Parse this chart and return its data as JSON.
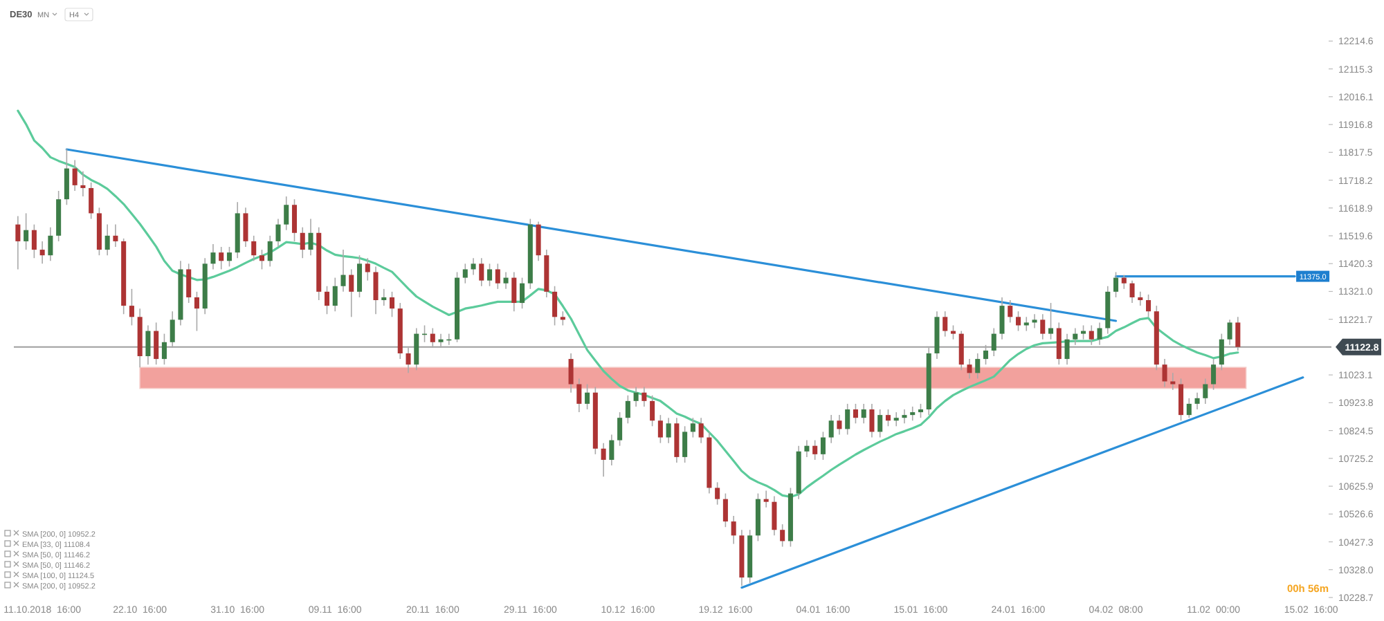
{
  "chart_data": {
    "type": "candlestick",
    "title": "DE30",
    "categories": [
      null,
      null,
      null,
      "11.10.2018  16:00",
      null,
      null,
      null,
      null,
      null,
      null,
      null,
      null,
      null,
      null,
      null,
      "22.10  16:00",
      null,
      null,
      null,
      null,
      null,
      null,
      null,
      null,
      null,
      null,
      null,
      "31.10  16:00",
      null,
      null,
      null,
      null,
      null,
      null,
      null,
      null,
      null,
      null,
      null,
      "09.11  16:00",
      null,
      null,
      null,
      null,
      null,
      null,
      null,
      null,
      null,
      null,
      null,
      "20.11  16:00",
      null,
      null,
      null,
      null,
      null,
      null,
      null,
      null,
      null,
      null,
      null,
      "29.11  16:00",
      null,
      null,
      null,
      null,
      null,
      null,
      null,
      null,
      null,
      null,
      null,
      "10.12  16:00",
      null,
      null,
      null,
      null,
      null,
      null,
      null,
      null,
      null,
      null,
      null,
      "19.12  16:00",
      null,
      null,
      null,
      null,
      null,
      null,
      null,
      null,
      null,
      null,
      null,
      "04.01  16:00",
      null,
      null,
      null,
      null,
      null,
      null,
      null,
      null,
      null,
      null,
      null,
      "15.01  16:00",
      null,
      null,
      null,
      null,
      null,
      null,
      null,
      null,
      null,
      null,
      null,
      "24.01  16:00",
      null,
      null,
      null,
      null,
      null,
      null,
      null,
      null,
      null,
      null,
      null,
      "04.02  08:00",
      null,
      null,
      null,
      null,
      null,
      null,
      null,
      null,
      null,
      null,
      null,
      "11.02  00:00",
      null,
      null,
      null,
      null,
      null,
      null,
      null,
      null,
      null,
      null,
      null,
      "15.02  16:00",
      null,
      null
    ],
    "ylim": [
      10228.7,
      12214.6
    ],
    "yticks": [
      12214.6,
      12115.3,
      12016.1,
      11916.8,
      11817.5,
      11718.2,
      11618.9,
      11519.6,
      11420.3,
      {
        "value": 11321,
        "label": "11321.0"
      },
      11221.7,
      11023.1,
      10923.8,
      10824.5,
      10725.2,
      10625.9,
      10526.6,
      10427.3,
      {
        "value": 10328,
        "label": "10328.0"
      },
      10228.7
    ],
    "bands": [
      {
        "axis": "y",
        "from": 10975,
        "to": 11050,
        "color": "#f2a19d"
      }
    ],
    "ref_lines": [
      {
        "axis": "y",
        "value": 11122.8,
        "label": "11122.8",
        "color": "#9e9e9e"
      }
    ],
    "annotations": [
      "SMA [200, 0] 10952.2",
      "EMA [33, 0] 11108.4",
      "SMA [50, 0] 11146.2",
      "SMA [50, 0] 11146.2",
      "SMA [100, 0] 11124.5",
      "SMA [200, 0] 10952.2",
      "00h 56m",
      "MN",
      "H4",
      "11375.0"
    ],
    "series": [
      {
        "type": "line",
        "color": "#5ccb9b",
        "values": [
          11966,
          11918,
          11860,
          11833,
          11800,
          11787,
          11776,
          11765,
          11738,
          11719,
          11705,
          11687,
          11661,
          11633,
          11598,
          11562,
          11522,
          11481,
          11430,
          11395,
          11382,
          11372,
          11362,
          11364,
          11373,
          11384,
          11395,
          11408,
          11423,
          11437,
          11448,
          11460,
          11478,
          11497,
          11494,
          11490,
          11495,
          11486,
          11467,
          11452,
          11447,
          11444,
          11440,
          11431,
          11420,
          11405,
          11391,
          11361,
          11331,
          11303,
          11285,
          11267,
          11252,
          11237,
          11248,
          11260,
          11265,
          11271,
          11278,
          11284,
          11284,
          11284,
          11285,
          11307,
          11330,
          11325,
          11311,
          11269,
          11224,
          11168,
          11112,
          11074,
          11037,
          11009,
          10984,
          10968,
          10960,
          10952,
          10941,
          10930,
          10908,
          10885,
          10874,
          10860,
          10848,
          10818,
          10788,
          10752,
          10716,
          10680,
          10655,
          10640,
          10628,
          10612,
          10593,
          10588,
          10597,
          10622,
          10643,
          10663,
          10684,
          10703,
          10721,
          10739,
          10755,
          10770,
          10785,
          10798,
          10812,
          10822,
          10833,
          10845,
          10872,
          10905,
          10930,
          10951,
          10966,
          10980,
          10992,
          11004,
          11017,
          11046,
          11076,
          11098,
          11116,
          11129,
          11136,
          11138,
          11140,
          11143,
          11144,
          11144,
          11144,
          11152,
          11159,
          11180,
          11193,
          11208,
          11222,
          11226,
          11190,
          11168,
          11146,
          11130,
          11116,
          11103,
          11094,
          11083,
          11089,
          11099,
          11103,
          null,
          null,
          null,
          null,
          null,
          null,
          null,
          null,
          null,
          null,
          null
        ]
      },
      {
        "type": "line",
        "color": "#2b8fd8",
        "values": [
          null,
          null,
          null,
          null,
          null,
          null,
          11828,
          null,
          null,
          null,
          null,
          null,
          null,
          null,
          null,
          null,
          null,
          null,
          null,
          null,
          null,
          null,
          null,
          null,
          null,
          null,
          null,
          null,
          null,
          null,
          null,
          null,
          null,
          null,
          null,
          null,
          null,
          null,
          null,
          null,
          null,
          null,
          null,
          null,
          null,
          null,
          null,
          null,
          null,
          null,
          null,
          null,
          null,
          null,
          null,
          null,
          null,
          null,
          null,
          null,
          null,
          null,
          null,
          null,
          null,
          null,
          null,
          null,
          null,
          null,
          null,
          null,
          null,
          null,
          null,
          null,
          null,
          null,
          null,
          null,
          null,
          null,
          null,
          null,
          null,
          null,
          null,
          null,
          null,
          null,
          null,
          null,
          null,
          null,
          null,
          null,
          null,
          null,
          null,
          null,
          null,
          null,
          null,
          null,
          null,
          null,
          null,
          null,
          null,
          null,
          null,
          null,
          null,
          null,
          null,
          null,
          null,
          null,
          null,
          null,
          null,
          null,
          null,
          null,
          null,
          null,
          null,
          null,
          null,
          null,
          null,
          null,
          null,
          null,
          null,
          11216,
          null,
          null,
          null,
          null,
          null,
          null,
          null,
          null,
          null,
          null,
          null,
          null,
          null,
          null,
          null,
          null,
          null,
          null,
          null,
          null,
          null,
          null,
          null,
          null,
          null,
          null
        ]
      },
      {
        "type": "line",
        "color": "#2b8fd8",
        "values": [
          null,
          null,
          null,
          null,
          null,
          null,
          null,
          null,
          null,
          null,
          null,
          null,
          null,
          null,
          null,
          null,
          null,
          null,
          null,
          null,
          null,
          null,
          null,
          null,
          null,
          null,
          null,
          null,
          null,
          null,
          null,
          null,
          null,
          null,
          null,
          null,
          null,
          null,
          null,
          null,
          null,
          null,
          null,
          null,
          null,
          null,
          null,
          null,
          null,
          null,
          null,
          null,
          null,
          null,
          null,
          null,
          null,
          null,
          null,
          null,
          null,
          null,
          null,
          null,
          null,
          null,
          null,
          null,
          null,
          null,
          null,
          null,
          null,
          null,
          null,
          null,
          null,
          null,
          null,
          null,
          null,
          null,
          null,
          null,
          null,
          null,
          null,
          null,
          null,
          10264,
          null,
          null,
          null,
          null,
          null,
          null,
          null,
          null,
          null,
          null,
          null,
          null,
          null,
          null,
          null,
          null,
          null,
          null,
          null,
          null,
          null,
          null,
          null,
          null,
          null,
          null,
          null,
          null,
          null,
          null,
          null,
          null,
          null,
          null,
          null,
          null,
          null,
          null,
          null,
          null,
          null,
          null,
          null,
          null,
          null,
          null,
          null,
          null,
          null,
          null,
          null,
          null,
          null,
          null,
          null,
          null,
          null,
          null,
          null,
          null,
          null,
          null,
          null,
          null,
          null,
          null,
          null,
          null,
          11014,
          null,
          null,
          null
        ]
      },
      {
        "type": "line",
        "color": "#2b8fd8",
        "values": [
          null,
          null,
          null,
          null,
          null,
          null,
          null,
          null,
          null,
          null,
          null,
          null,
          null,
          null,
          null,
          null,
          null,
          null,
          null,
          null,
          null,
          null,
          null,
          null,
          null,
          null,
          null,
          null,
          null,
          null,
          null,
          null,
          null,
          null,
          null,
          null,
          null,
          null,
          null,
          null,
          null,
          null,
          null,
          null,
          null,
          null,
          null,
          null,
          null,
          null,
          null,
          null,
          null,
          null,
          null,
          null,
          null,
          null,
          null,
          null,
          null,
          null,
          null,
          null,
          null,
          null,
          null,
          null,
          null,
          null,
          null,
          null,
          null,
          null,
          null,
          null,
          null,
          null,
          null,
          null,
          null,
          null,
          null,
          null,
          null,
          null,
          null,
          null,
          null,
          null,
          null,
          null,
          null,
          null,
          null,
          null,
          null,
          null,
          null,
          null,
          null,
          null,
          null,
          null,
          null,
          null,
          null,
          null,
          null,
          null,
          null,
          null,
          null,
          null,
          null,
          null,
          null,
          null,
          null,
          null,
          null,
          null,
          null,
          null,
          null,
          null,
          null,
          null,
          null,
          null,
          null,
          null,
          null,
          null,
          null,
          11375,
          null,
          null,
          null,
          null,
          null,
          null,
          null,
          null,
          null,
          null,
          null,
          null,
          null,
          null,
          null,
          null,
          null,
          null,
          null,
          null,
          null,
          11375,
          null,
          null,
          null,
          null
        ]
      },
      {
        "colors": [
          "#ad3434",
          "#3d7d48",
          "#ad3434",
          "#ad3434",
          "#3d7d48",
          "#3d7d48",
          "#3d7d48",
          "#ad3434",
          "#ad3434",
          "#ad3434",
          "#ad3434",
          "#3d7d48",
          "#ad3434",
          "#ad3434",
          "#ad3434",
          "#ad3434",
          "#3d7d48",
          "#ad3434",
          "#3d7d48",
          "#3d7d48",
          "#3d7d48",
          "#ad3434",
          "#ad3434",
          "#3d7d48",
          "#3d7d48",
          "#ad3434",
          "#3d7d48",
          "#3d7d48",
          "#ad3434",
          "#ad3434",
          "#ad3434",
          "#3d7d48",
          "#3d7d48",
          "#3d7d48",
          "#ad3434",
          "#ad3434",
          "#3d7d48",
          "#ad3434",
          "#ad3434",
          "#3d7d48",
          "#3d7d48",
          "#ad3434",
          "#3d7d48",
          "#ad3434",
          "#ad3434",
          "#3d7d48",
          "#ad3434",
          "#ad3434",
          "#ad3434",
          "#3d7d48",
          "#3d7d48",
          "#ad3434",
          "#3d7d48",
          "#3d7d48",
          "#3d7d48",
          "#3d7d48",
          "#3d7d48",
          "#ad3434",
          "#3d7d48",
          "#ad3434",
          "#3d7d48",
          "#ad3434",
          "#3d7d48",
          "#3d7d48",
          "#ad3434",
          "#ad3434",
          "#ad3434",
          "#ad3434",
          "#ad3434",
          "#ad3434",
          "#3d7d48",
          "#ad3434",
          "#ad3434",
          "#3d7d48",
          "#3d7d48",
          "#3d7d48",
          "#3d7d48",
          "#ad3434",
          "#ad3434",
          "#ad3434",
          "#3d7d48",
          "#ad3434",
          "#3d7d48",
          "#3d7d48",
          "#ad3434",
          "#ad3434",
          "#ad3434",
          "#ad3434",
          "#ad3434",
          "#ad3434",
          "#3d7d48",
          "#3d7d48",
          "#ad3434",
          "#ad3434",
          "#ad3434",
          "#3d7d48",
          "#3d7d48",
          "#3d7d48",
          "#ad3434",
          "#3d7d48",
          "#3d7d48",
          "#ad3434",
          "#3d7d48",
          "#ad3434",
          "#3d7d48",
          "#ad3434",
          "#3d7d48",
          "#ad3434",
          "#3d7d48",
          "#3d7d48",
          "#3d7d48",
          "#3d7d48",
          "#3d7d48",
          "#3d7d48",
          "#ad3434",
          "#ad3434",
          "#ad3434",
          "#ad3434",
          "#3d7d48",
          "#3d7d48",
          "#3d7d48",
          "#3d7d48",
          "#ad3434",
          "#ad3434",
          "#3d7d48",
          "#3d7d48",
          "#ad3434",
          "#3d7d48",
          "#ad3434",
          "#3d7d48",
          "#3d7d48",
          "#3d7d48",
          "#ad3434",
          "#3d7d48",
          "#3d7d48",
          "#3d7d48",
          "#ad3434",
          "#ad3434",
          "#ad3434",
          "#ad3434",
          "#ad3434",
          "#ad3434",
          "#ad3434",
          "#ad3434",
          "#3d7d48",
          "#3d7d48",
          "#3d7d48",
          "#3d7d48",
          "#3d7d48",
          "#3d7d48",
          "#ad3434",
          null,
          null,
          null,
          null,
          null,
          null,
          null,
          null,
          null,
          null,
          null
        ],
        "ohlc": [
          [
            11560,
            11590,
            11400,
            11500
          ],
          [
            11500,
            11600,
            11470,
            11540
          ],
          [
            11540,
            11560,
            11440,
            11470
          ],
          [
            11470,
            11500,
            11420,
            11450
          ],
          [
            11450,
            11550,
            11430,
            11520
          ],
          [
            11520,
            11680,
            11500,
            11650
          ],
          [
            11650,
            11830,
            11630,
            11760
          ],
          [
            11760,
            11790,
            11680,
            11700
          ],
          [
            11700,
            11750,
            11660,
            11690
          ],
          [
            11690,
            11710,
            11580,
            11600
          ],
          [
            11600,
            11620,
            11450,
            11470
          ],
          [
            11470,
            11560,
            11450,
            11520
          ],
          [
            11520,
            11560,
            11480,
            11500
          ],
          [
            11500,
            11510,
            11240,
            11270
          ],
          [
            11270,
            11330,
            11200,
            11230
          ],
          [
            11230,
            11260,
            11050,
            11090
          ],
          [
            11090,
            11200,
            11060,
            11180
          ],
          [
            11180,
            11210,
            11060,
            11080
          ],
          [
            11080,
            11170,
            11060,
            11140
          ],
          [
            11140,
            11250,
            11120,
            11220
          ],
          [
            11220,
            11430,
            11200,
            11400
          ],
          [
            11400,
            11420,
            11280,
            11300
          ],
          [
            11300,
            11320,
            11180,
            11260
          ],
          [
            11260,
            11440,
            11240,
            11420
          ],
          [
            11420,
            11490,
            11400,
            11460
          ],
          [
            11460,
            11480,
            11400,
            11430
          ],
          [
            11430,
            11480,
            11410,
            11460
          ],
          [
            11460,
            11640,
            11440,
            11600
          ],
          [
            11600,
            11620,
            11480,
            11500
          ],
          [
            11500,
            11520,
            11430,
            11450
          ],
          [
            11450,
            11470,
            11400,
            11430
          ],
          [
            11430,
            11520,
            11410,
            11500
          ],
          [
            11500,
            11580,
            11480,
            11560
          ],
          [
            11560,
            11660,
            11540,
            11630
          ],
          [
            11630,
            11650,
            11500,
            11530
          ],
          [
            11530,
            11550,
            11440,
            11470
          ],
          [
            11470,
            11580,
            11450,
            11530
          ],
          [
            11530,
            11550,
            11290,
            11320
          ],
          [
            11320,
            11340,
            11240,
            11270
          ],
          [
            11270,
            11370,
            11250,
            11340
          ],
          [
            11340,
            11470,
            11320,
            11380
          ],
          [
            11380,
            11400,
            11230,
            11320
          ],
          [
            11320,
            11450,
            11300,
            11420
          ],
          [
            11420,
            11440,
            11360,
            11390
          ],
          [
            11390,
            11410,
            11240,
            11290
          ],
          [
            11290,
            11330,
            11270,
            11300
          ],
          [
            11300,
            11320,
            11230,
            11260
          ],
          [
            11260,
            11280,
            11080,
            11100
          ],
          [
            11100,
            11120,
            11030,
            11060
          ],
          [
            11060,
            11190,
            11040,
            11170
          ],
          [
            11170,
            11200,
            11140,
            11170
          ],
          [
            11170,
            11190,
            11120,
            11140
          ],
          [
            11140,
            11170,
            11120,
            11150
          ],
          [
            11150,
            11170,
            11130,
            11150
          ],
          [
            11150,
            11390,
            11140,
            11370
          ],
          [
            11370,
            11420,
            11350,
            11400
          ],
          [
            11400,
            11440,
            11380,
            11420
          ],
          [
            11420,
            11440,
            11340,
            11360
          ],
          [
            11360,
            11420,
            11340,
            11400
          ],
          [
            11400,
            11420,
            11330,
            11350
          ],
          [
            11350,
            11390,
            11330,
            11370
          ],
          [
            11370,
            11390,
            11250,
            11280
          ],
          [
            11280,
            11370,
            11260,
            11350
          ],
          [
            11350,
            11580,
            11330,
            11560
          ],
          [
            11560,
            11570,
            11430,
            11450
          ],
          [
            11450,
            11470,
            11300,
            11320
          ],
          [
            11320,
            11340,
            11200,
            11230
          ],
          [
            11230,
            11250,
            11200,
            11220
          ],
          [
            11080,
            11100,
            10960,
            10990
          ],
          [
            10990,
            11010,
            10890,
            10920
          ],
          [
            10920,
            10990,
            10900,
            10960
          ],
          [
            10960,
            10980,
            10740,
            10760
          ],
          [
            10760,
            10780,
            10660,
            10720
          ],
          [
            10720,
            10810,
            10700,
            10790
          ],
          [
            10790,
            10890,
            10770,
            10870
          ],
          [
            10870,
            10950,
            10850,
            10930
          ],
          [
            10930,
            10980,
            10910,
            10960
          ],
          [
            10960,
            10980,
            10910,
            10930
          ],
          [
            10930,
            10950,
            10840,
            10860
          ],
          [
            10860,
            10880,
            10780,
            10800
          ],
          [
            10800,
            10870,
            10780,
            10850
          ],
          [
            10850,
            10870,
            10710,
            10730
          ],
          [
            10730,
            10840,
            10710,
            10820
          ],
          [
            10820,
            10870,
            10800,
            10850
          ],
          [
            10850,
            10870,
            10780,
            10800
          ],
          [
            10800,
            10820,
            10600,
            10620
          ],
          [
            10620,
            10640,
            10560,
            10580
          ],
          [
            10580,
            10600,
            10480,
            10500
          ],
          [
            10500,
            10520,
            10420,
            10450
          ],
          [
            10450,
            10470,
            10270,
            10300
          ],
          [
            10300,
            10470,
            10280,
            10450
          ],
          [
            10450,
            10600,
            10430,
            10580
          ],
          [
            10580,
            10610,
            10550,
            10570
          ],
          [
            10570,
            10590,
            10450,
            10470
          ],
          [
            10470,
            10490,
            10410,
            10430
          ],
          [
            10430,
            10620,
            10410,
            10600
          ],
          [
            10600,
            10770,
            10580,
            10750
          ],
          [
            10750,
            10790,
            10730,
            10770
          ],
          [
            10770,
            10790,
            10720,
            10740
          ],
          [
            10740,
            10820,
            10720,
            10800
          ],
          [
            10800,
            10880,
            10780,
            10860
          ],
          [
            10860,
            10880,
            10810,
            10830
          ],
          [
            10830,
            10920,
            10810,
            10900
          ],
          [
            10900,
            10920,
            10850,
            10870
          ],
          [
            10870,
            10920,
            10850,
            10900
          ],
          [
            10900,
            10920,
            10800,
            10820
          ],
          [
            10820,
            10900,
            10800,
            10880
          ],
          [
            10880,
            10900,
            10840,
            10860
          ],
          [
            10860,
            10890,
            10840,
            10870
          ],
          [
            10870,
            10900,
            10850,
            10880
          ],
          [
            10880,
            10910,
            10860,
            10890
          ],
          [
            10890,
            10920,
            10870,
            10900
          ],
          [
            10900,
            11120,
            10880,
            11100
          ],
          [
            11100,
            11250,
            11080,
            11230
          ],
          [
            11230,
            11250,
            11160,
            11180
          ],
          [
            11180,
            11200,
            11150,
            11170
          ],
          [
            11170,
            11180,
            11040,
            11060
          ],
          [
            11060,
            11080,
            11010,
            11030
          ],
          [
            11030,
            11100,
            11010,
            11080
          ],
          [
            11080,
            11130,
            11060,
            11110
          ],
          [
            11110,
            11190,
            11090,
            11170
          ],
          [
            11170,
            11300,
            11150,
            11270
          ],
          [
            11270,
            11290,
            11210,
            11230
          ],
          [
            11230,
            11250,
            11180,
            11200
          ],
          [
            11200,
            11230,
            11180,
            11210
          ],
          [
            11210,
            11240,
            11190,
            11220
          ],
          [
            11220,
            11240,
            11150,
            11170
          ],
          [
            11170,
            11280,
            11150,
            11190
          ],
          [
            11190,
            11210,
            11060,
            11080
          ],
          [
            11080,
            11170,
            11060,
            11150
          ],
          [
            11150,
            11190,
            11130,
            11170
          ],
          [
            11170,
            11200,
            11150,
            11180
          ],
          [
            11180,
            11200,
            11130,
            11150
          ],
          [
            11150,
            11210,
            11130,
            11190
          ],
          [
            11190,
            11340,
            11170,
            11320
          ],
          [
            11320,
            11390,
            11300,
            11370
          ],
          [
            11370,
            11380,
            11330,
            11350
          ],
          [
            11350,
            11360,
            11280,
            11300
          ],
          [
            11300,
            11320,
            11270,
            11290
          ],
          [
            11290,
            11310,
            11230,
            11250
          ],
          [
            11250,
            11270,
            11040,
            11060
          ],
          [
            11060,
            11080,
            10980,
            11000
          ],
          [
            11000,
            11030,
            10970,
            10990
          ],
          [
            10990,
            11010,
            10860,
            10880
          ],
          [
            10880,
            10940,
            10870,
            10920
          ],
          [
            10920,
            10960,
            10900,
            10940
          ],
          [
            10940,
            11010,
            10920,
            10990
          ],
          [
            10990,
            11080,
            10970,
            11060
          ],
          [
            11060,
            11170,
            11040,
            11150
          ],
          [
            11150,
            11220,
            11130,
            11210
          ],
          [
            11210,
            11230,
            11110,
            11122.8
          ],
          null,
          null,
          null,
          null,
          null,
          null,
          null,
          null,
          null,
          null,
          null
        ]
      }
    ]
  }
}
